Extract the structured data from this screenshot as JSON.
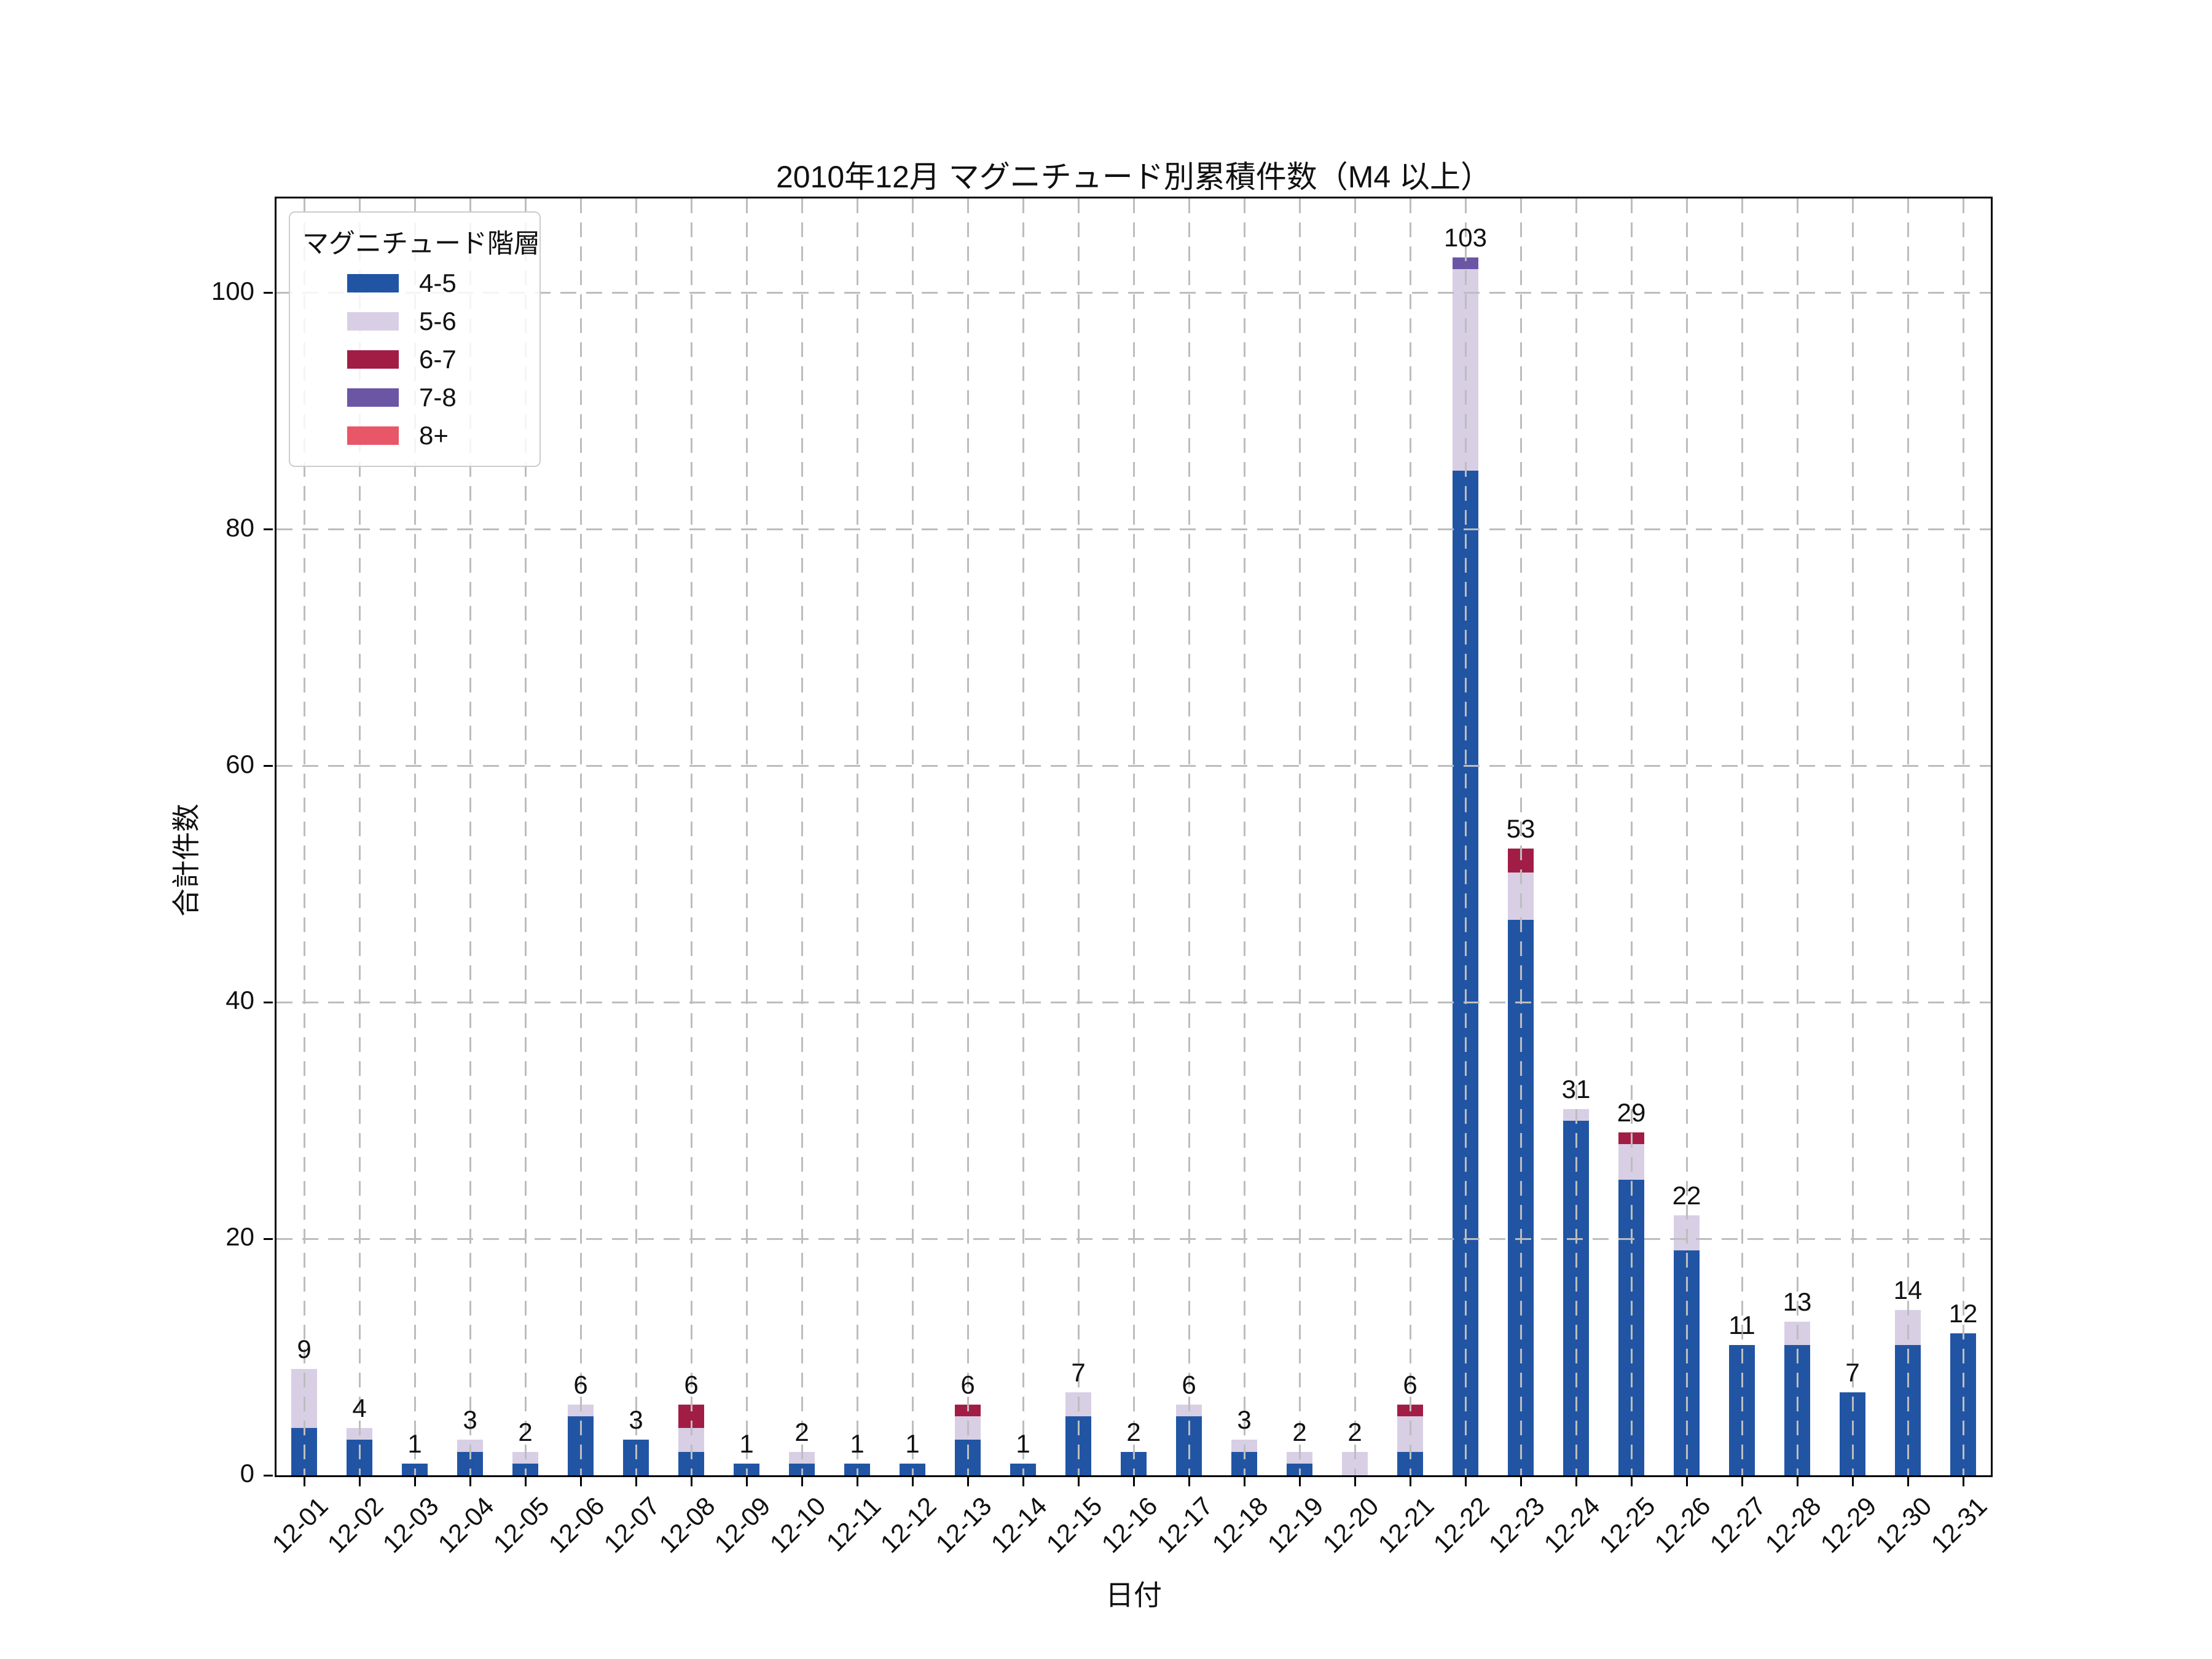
{
  "chart_data": {
    "type": "bar",
    "stacked": true,
    "title": "2010年12月 マグニチュード別累積件数（M4 以上）",
    "xlabel": "日付",
    "ylabel": "合計件数",
    "ylim": [
      0,
      108
    ],
    "yticks": [
      0,
      20,
      40,
      60,
      80,
      100
    ],
    "grid": true,
    "grid_style": "dashed",
    "legend_title": "マグニチュード階層",
    "legend_position": "upper left",
    "categories": [
      "12-01",
      "12-02",
      "12-03",
      "12-04",
      "12-05",
      "12-06",
      "12-07",
      "12-08",
      "12-09",
      "12-10",
      "12-11",
      "12-12",
      "12-13",
      "12-14",
      "12-15",
      "12-16",
      "12-17",
      "12-18",
      "12-19",
      "12-20",
      "12-21",
      "12-22",
      "12-23",
      "12-24",
      "12-25",
      "12-26",
      "12-27",
      "12-28",
      "12-29",
      "12-30",
      "12-31"
    ],
    "series": [
      {
        "name": "4-5",
        "color": "#2155a4",
        "values": [
          4,
          3,
          1,
          2,
          1,
          5,
          3,
          2,
          1,
          1,
          1,
          1,
          3,
          1,
          5,
          2,
          5,
          2,
          1,
          0,
          2,
          85,
          47,
          30,
          25,
          19,
          11,
          11,
          7,
          11,
          12
        ]
      },
      {
        "name": "5-6",
        "color": "#d8cfe5",
        "values": [
          5,
          1,
          0,
          1,
          1,
          1,
          0,
          2,
          0,
          1,
          0,
          0,
          2,
          0,
          2,
          0,
          1,
          1,
          1,
          2,
          3,
          17,
          4,
          1,
          3,
          3,
          0,
          2,
          0,
          3,
          0
        ]
      },
      {
        "name": "6-7",
        "color": "#a21d45",
        "values": [
          0,
          0,
          0,
          0,
          0,
          0,
          0,
          2,
          0,
          0,
          0,
          0,
          1,
          0,
          0,
          0,
          0,
          0,
          0,
          0,
          1,
          0,
          2,
          0,
          1,
          0,
          0,
          0,
          0,
          0,
          0
        ]
      },
      {
        "name": "7-8",
        "color": "#6b56a5",
        "values": [
          0,
          0,
          0,
          0,
          0,
          0,
          0,
          0,
          0,
          0,
          0,
          0,
          0,
          0,
          0,
          0,
          0,
          0,
          0,
          0,
          0,
          1,
          0,
          0,
          0,
          0,
          0,
          0,
          0,
          0,
          0
        ]
      },
      {
        "name": "8+",
        "color": "#e85767",
        "values": [
          0,
          0,
          0,
          0,
          0,
          0,
          0,
          0,
          0,
          0,
          0,
          0,
          0,
          0,
          0,
          0,
          0,
          0,
          0,
          0,
          0,
          0,
          0,
          0,
          0,
          0,
          0,
          0,
          0,
          0,
          0
        ]
      }
    ],
    "totals": [
      9,
      4,
      1,
      3,
      2,
      6,
      3,
      6,
      1,
      2,
      1,
      1,
      6,
      1,
      7,
      2,
      6,
      3,
      2,
      2,
      6,
      103,
      53,
      31,
      29,
      22,
      11,
      13,
      7,
      14,
      12
    ]
  }
}
